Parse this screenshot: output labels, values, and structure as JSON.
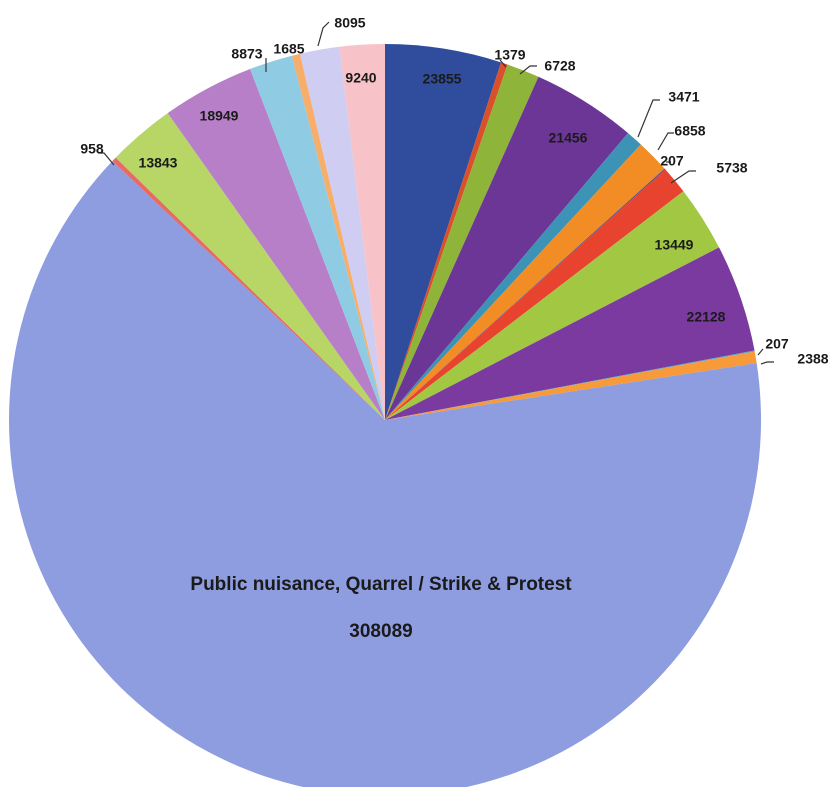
{
  "chart_data": {
    "type": "pie",
    "title": "",
    "slices": [
      {
        "value": 23855,
        "label": "23855",
        "color": "#2f4d9c"
      },
      {
        "value": 1379,
        "label": "1379",
        "color": "#d9502a"
      },
      {
        "value": 6728,
        "label": "6728",
        "color": "#8fb43a"
      },
      {
        "value": 21456,
        "label": "21456",
        "color": "#6c3696"
      },
      {
        "value": 3471,
        "label": "3471",
        "color": "#3d93b5"
      },
      {
        "value": 6858,
        "label": "6858",
        "color": "#f28d26"
      },
      {
        "value": 207,
        "label": "207",
        "color": "#3b4c96"
      },
      {
        "value": 5738,
        "label": "5738",
        "color": "#e8432f"
      },
      {
        "value": 13449,
        "label": "13449",
        "color": "#a2c843"
      },
      {
        "value": 22128,
        "label": "22128",
        "color": "#7b3aa0"
      },
      {
        "value": 207,
        "label": "207",
        "color": "#48a9c9"
      },
      {
        "value": 2388,
        "label": "2388",
        "color": "#f79a3a"
      },
      {
        "value": 308089,
        "label": "308089",
        "name": "Public nuisance, Quarrel / Strike & Protest",
        "color": "#8e9ce0"
      },
      {
        "value": 958,
        "label": "958",
        "color": "#e76a63"
      },
      {
        "value": 13843,
        "label": "13843",
        "color": "#b7d665"
      },
      {
        "value": 18949,
        "label": "18949",
        "color": "#b67fc8"
      },
      {
        "value": 8873,
        "label": "8873",
        "color": "#8fcbe3"
      },
      {
        "value": 1685,
        "label": "1685",
        "color": "#f6ae6a"
      },
      {
        "value": 8095,
        "label": "8095",
        "color": "#cfcdf1"
      },
      {
        "value": 9240,
        "label": "9240",
        "color": "#f7c3c8"
      }
    ],
    "main_label": {
      "name": "Public nuisance, Quarrel / Strike & Protest",
      "value": "308089"
    }
  }
}
